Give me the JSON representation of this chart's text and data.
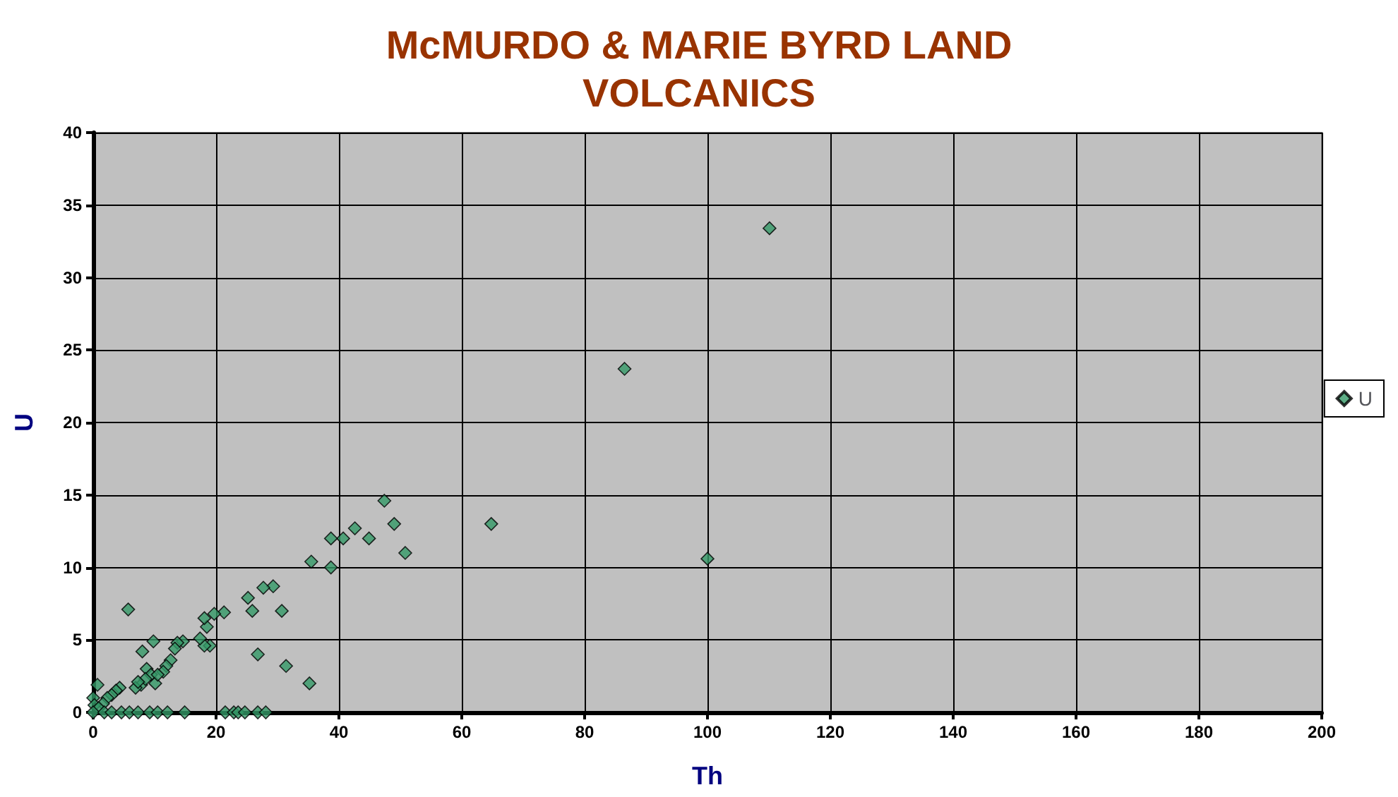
{
  "chart_data": {
    "type": "scatter",
    "title": "McMURDO & MARIE BYRD LAND\nVOLCANICS",
    "xlabel": "Th",
    "ylabel": "U",
    "xlim": [
      0,
      200
    ],
    "xticks": [
      0,
      20,
      40,
      60,
      80,
      100,
      120,
      140,
      160,
      180,
      200
    ],
    "ylim": [
      0,
      40
    ],
    "yticks": [
      0,
      5,
      10,
      15,
      20,
      25,
      30,
      35,
      40
    ],
    "grid": true,
    "legend": "right",
    "marker": "diamond",
    "series": [
      {
        "name": "U",
        "color": "#339966",
        "x": [
          110.1,
          86.5,
          100,
          64.8,
          47.4,
          49,
          50.8,
          44.9,
          42.6,
          40.7,
          38.7,
          38.7,
          35.5,
          35.2,
          31.4,
          30.7,
          29.3,
          27.7,
          26.8,
          25.9,
          25.2,
          21.3,
          19.7,
          19,
          18.5,
          18.1,
          18.1,
          17.4,
          14.6,
          13.7,
          13.3,
          12.6,
          11.9,
          11.4,
          9.8,
          8,
          5.7,
          7.8,
          6.9,
          8.7,
          9.4,
          10.1,
          10.5,
          8.5,
          7.3,
          4.3,
          3.7,
          3,
          2.3,
          1.6,
          0.7,
          0,
          0.2,
          0.9,
          0,
          1.8,
          3,
          4.6,
          5.9,
          7.3,
          9.2,
          10.5,
          12.1,
          14.9,
          21.5,
          22.9,
          23.6,
          24.7,
          26.8,
          28.1
        ],
        "values": [
          33.4,
          23.7,
          10.6,
          13,
          14.6,
          13,
          11,
          12,
          12.7,
          12,
          12,
          10,
          10.4,
          2,
          3.2,
          7,
          8.7,
          8.6,
          4,
          7,
          7.9,
          6.9,
          6.8,
          4.6,
          5.9,
          6.5,
          4.6,
          5.1,
          4.9,
          4.8,
          4.4,
          3.6,
          3.2,
          2.8,
          4.9,
          4.2,
          7.1,
          1.9,
          1.7,
          3,
          2.6,
          2,
          2.6,
          2.3,
          2.1,
          1.7,
          1.5,
          1.2,
          1,
          0.6,
          1.9,
          1,
          0.5,
          0.3,
          0,
          0,
          0,
          0,
          0,
          0,
          0,
          0,
          0,
          0,
          0,
          0,
          0,
          0,
          0,
          0
        ]
      }
    ]
  }
}
